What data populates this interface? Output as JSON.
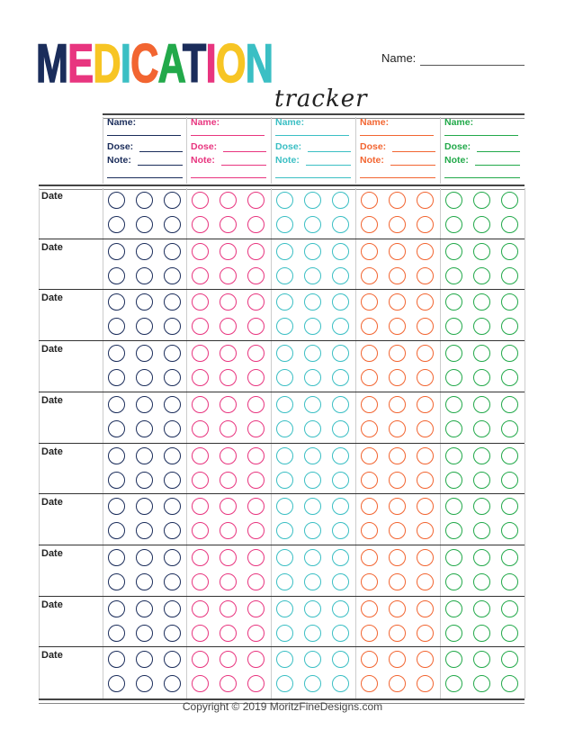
{
  "title": {
    "letters": [
      {
        "ch": "M",
        "color": "#1b2d5b"
      },
      {
        "ch": "E",
        "color": "#e8357f"
      },
      {
        "ch": "D",
        "color": "#f7c524"
      },
      {
        "ch": "I",
        "color": "#3bbfc4"
      },
      {
        "ch": "C",
        "color": "#f26531"
      },
      {
        "ch": "A",
        "color": "#22a94a"
      },
      {
        "ch": "T",
        "color": "#1b2d5b"
      },
      {
        "ch": "I",
        "color": "#e8357f"
      },
      {
        "ch": "O",
        "color": "#f7c524"
      },
      {
        "ch": "N",
        "color": "#3bbfc4"
      }
    ],
    "subtitle": "tracker"
  },
  "name_label": "Name:",
  "medications": [
    {
      "color": "#1b2d5b",
      "name_label": "Name:",
      "dose_label": "Dose:",
      "note_label": "Note:"
    },
    {
      "color": "#e8357f",
      "name_label": "Name:",
      "dose_label": "Dose:",
      "note_label": "Note:"
    },
    {
      "color": "#3bbfc4",
      "name_label": "Name:",
      "dose_label": "Dose:",
      "note_label": "Note:"
    },
    {
      "color": "#f26531",
      "name_label": "Name:",
      "dose_label": "Dose:",
      "note_label": "Note:"
    },
    {
      "color": "#22a94a",
      "name_label": "Name:",
      "dose_label": "Dose:",
      "note_label": "Note:"
    }
  ],
  "rows": [
    {
      "label": "Date"
    },
    {
      "label": "Date"
    },
    {
      "label": "Date"
    },
    {
      "label": "Date"
    },
    {
      "label": "Date"
    },
    {
      "label": "Date"
    },
    {
      "label": "Date"
    },
    {
      "label": "Date"
    },
    {
      "label": "Date"
    },
    {
      "label": "Date"
    }
  ],
  "doses_per_row": 6,
  "copyright": "Copyright © 2019 MoritzFineDesigns.com"
}
